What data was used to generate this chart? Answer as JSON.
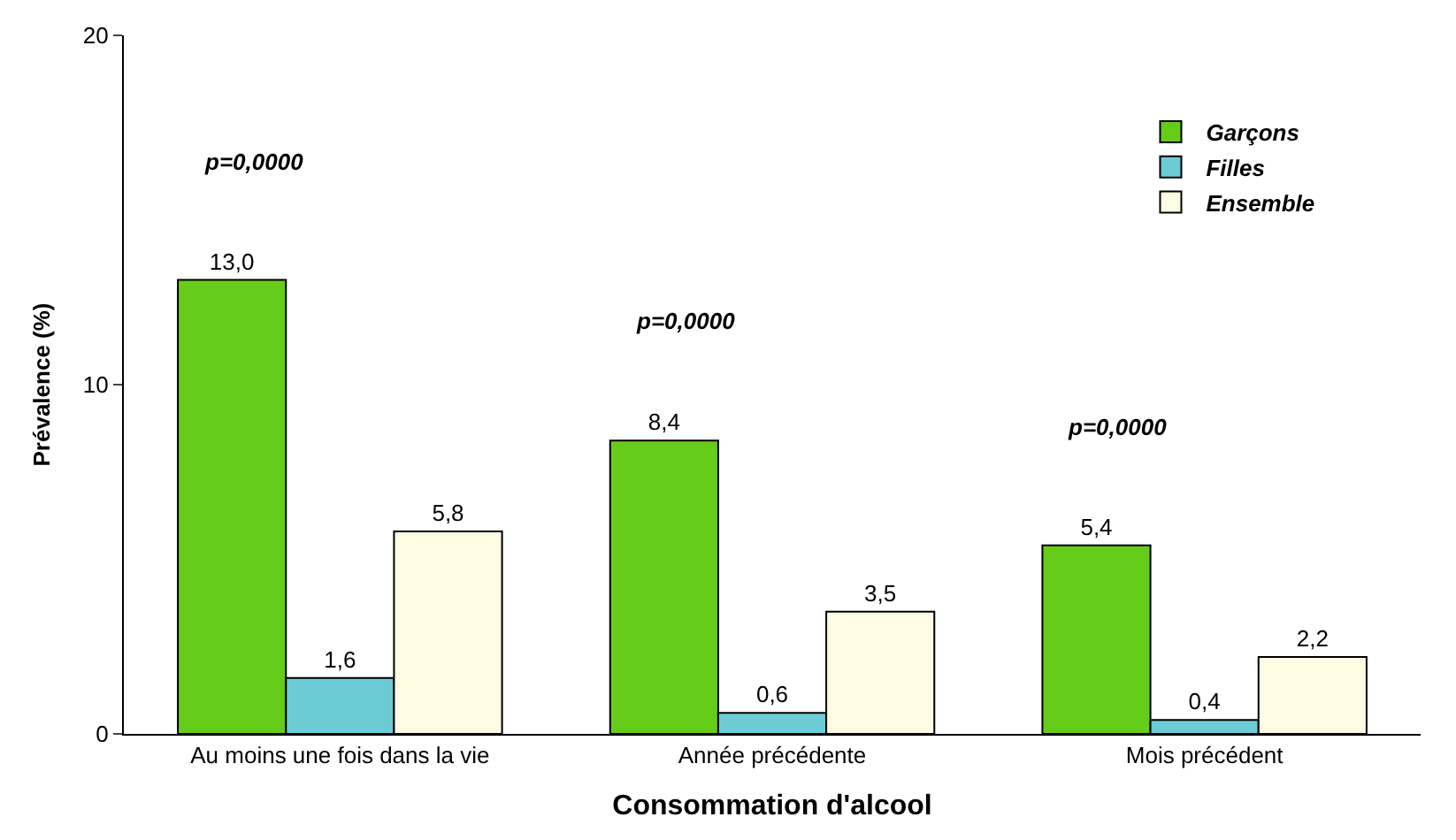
{
  "chart_data": {
    "type": "bar",
    "xlabel": "Consommation d'alcool",
    "ylabel": "Prévalence (%)",
    "categories": [
      "Au moins une fois dans la vie",
      "Année précédente",
      "Mois précédent"
    ],
    "series": [
      {
        "name": "Garçons",
        "color": "#66cc1a",
        "values": [
          13.0,
          8.4,
          5.4
        ],
        "value_labels": [
          "13,0",
          "8,4",
          "5,4"
        ]
      },
      {
        "name": "Filles",
        "color": "#6cccd6",
        "values": [
          1.6,
          0.6,
          0.4
        ],
        "value_labels": [
          "1,6",
          "0,6",
          "0,4"
        ]
      },
      {
        "name": "Ensemble",
        "color": "#fdfbe2",
        "values": [
          5.8,
          3.5,
          2.2
        ],
        "value_labels": [
          "5,8",
          "3,5",
          "2,2"
        ]
      }
    ],
    "ylim": [
      0,
      20
    ],
    "yticks": [
      0,
      10,
      20
    ],
    "legend": "top right",
    "annotations": [
      "p=0,0000",
      "p=0,0000",
      "p=0,0000"
    ]
  }
}
